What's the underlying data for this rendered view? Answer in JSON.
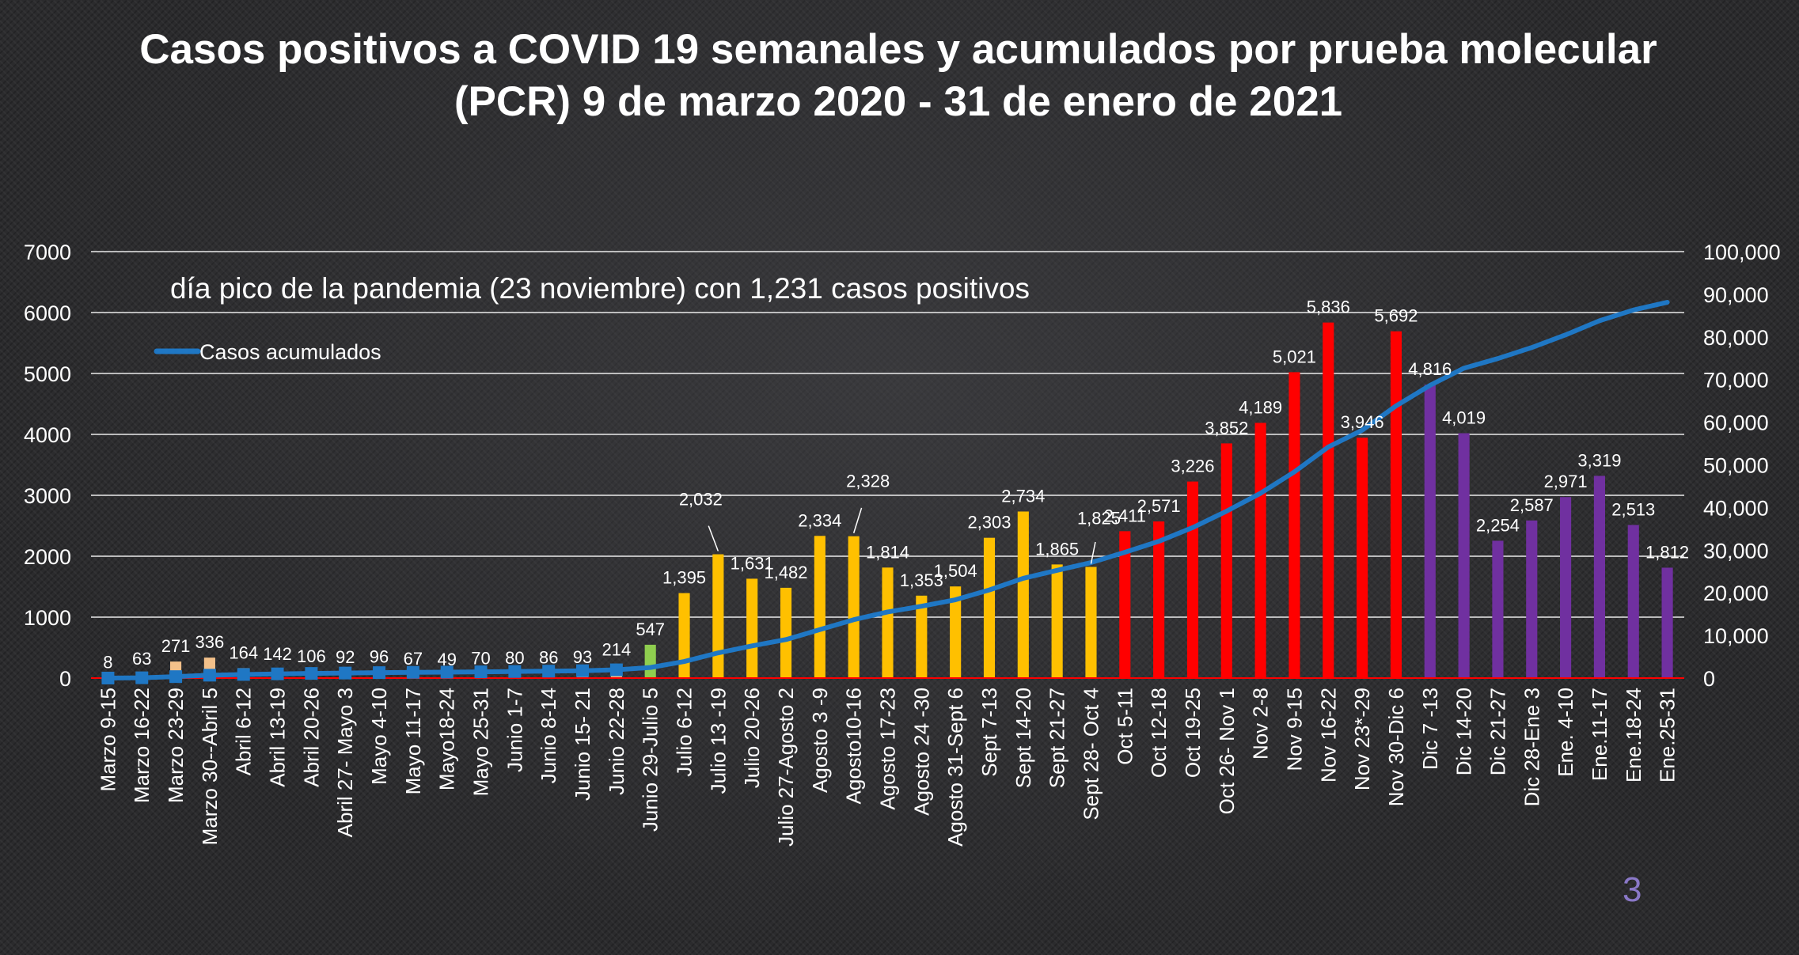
{
  "chart_data": {
    "type": "bar",
    "title": "Casos positivos a COVID 19 semanales y acumulados por prueba molecular (PCR) 9 de marzo 2020 - 31 de enero de 2021",
    "annotation": "día pico de la pandemia (23 noviembre) con  1,231  casos positivos",
    "categories": [
      "Marzo 9-15",
      "Marzo 16-22",
      "Marzo 23-29",
      "Marzo 30--Abril 5",
      "Abril 6-12",
      "Abril 13-19",
      "Abril 20-26",
      "Abril 27- Mayo 3",
      "Mayo 4-10",
      "Mayo 11-17",
      "Mayo18-24",
      "Mayo 25-31",
      "Junio  1-7",
      "Junio 8-14",
      "Junio  15- 21",
      "Junio 22-28",
      "Junio  29-Julio 5",
      "Julio 6-12",
      "Julio 13 -19",
      "Julio 20-26",
      "Julio 27-Agosto 2",
      "Agosto 3 -9",
      "Agosto10-16",
      "Agosto 17-23",
      "Agosto 24 -30",
      "Agosto 31-Sept 6",
      "Sept 7-13",
      "Sept 14-20",
      "Sept 21-27",
      "Sept 28- Oct 4",
      "Oct 5-11",
      "Oct 12-18",
      "Oct 19-25",
      "Oct 26- Nov 1",
      "Nov 2-8",
      "Nov 9-15",
      "Nov 16-22",
      "Nov 23*-29",
      "Nov 30-Dic 6",
      "Dic 7 -13",
      "Dic 14-20",
      "Dic 21-27",
      "Dic 28-Ene 3",
      "Ene. 4-10",
      "Ene.11-17",
      "Ene.18-24",
      "Ene.25-31"
    ],
    "series": [
      {
        "kind": "bar",
        "axis": "left",
        "values": [
          8,
          63,
          271,
          336,
          164,
          142,
          106,
          92,
          96,
          67,
          49,
          70,
          80,
          86,
          93,
          214,
          547,
          1395,
          2032,
          1631,
          1482,
          2334,
          2328,
          1814,
          1353,
          1504,
          2303,
          2734,
          1865,
          1825,
          2411,
          2571,
          3226,
          3852,
          4189,
          5021,
          5836,
          3946,
          5692,
          4816,
          4019,
          2254,
          2587,
          2971,
          3319,
          2513,
          1812
        ],
        "labels": [
          "8",
          "63",
          "271",
          "336",
          "164",
          "142",
          "106",
          "92",
          "96",
          "67",
          "49",
          "70",
          "80",
          "86",
          "93",
          "214",
          "547",
          "1,395",
          "2,032",
          "1,631",
          "1,482",
          "2,334",
          "2,328",
          "1,814",
          "1,353",
          "1,504",
          "2,303",
          "2,734",
          "1,865",
          "1,825",
          "2,411",
          "2,571",
          "3,226",
          "3,852",
          "4,189",
          "5,021",
          "5,836",
          "3,946",
          "5,692",
          "4,816",
          "4,019",
          "2,254",
          "2,587",
          "2,971",
          "3,319",
          "2,513",
          "1,812"
        ],
        "colors": [
          "#f2c08a",
          "#f2c08a",
          "#f2c08a",
          "#f2c08a",
          "#f2c08a",
          "#f2c08a",
          "#f2c08a",
          "#f2c08a",
          "#f2c08a",
          "#f2c08a",
          "#f2c08a",
          "#f2c08a",
          "#f2c08a",
          "#f2c08a",
          "#f2c08a",
          "#f2c08a",
          "#8fce4f",
          "#ffc000",
          "#ffc000",
          "#ffc000",
          "#ffc000",
          "#ffc000",
          "#ffc000",
          "#ffc000",
          "#ffc000",
          "#ffc000",
          "#ffc000",
          "#ffc000",
          "#ffc000",
          "#ffc000",
          "#ff0000",
          "#ff0000",
          "#ff0000",
          "#ff0000",
          "#ff0000",
          "#ff0000",
          "#ff0000",
          "#ff0000",
          "#ff0000",
          "#7030a0",
          "#7030a0",
          "#7030a0",
          "#7030a0",
          "#7030a0",
          "#7030a0",
          "#7030a0",
          "#7030a0"
        ]
      },
      {
        "kind": "line",
        "axis": "right",
        "name": "Casos acumulados",
        "color": "#1f77c4",
        "values": [
          8,
          71,
          342,
          678,
          842,
          984,
          1090,
          1182,
          1278,
          1345,
          1394,
          1464,
          1544,
          1630,
          1723,
          1937,
          2484,
          3879,
          5911,
          7542,
          9024,
          11358,
          13686,
          15500,
          16853,
          18357,
          20660,
          23394,
          25259,
          27084,
          29495,
          32066,
          35292,
          39144,
          43333,
          48354,
          54190,
          58136,
          63828,
          68644,
          72663,
          74917,
          77504,
          80475,
          83794,
          86307,
          88119
        ]
      }
    ],
    "y_left": {
      "min": 0,
      "max": 7000,
      "ticks": [
        "0",
        "1000",
        "2000",
        "3000",
        "4000",
        "5000",
        "6000",
        "7000"
      ]
    },
    "y_right": {
      "min": 0,
      "max": 100000,
      "ticks": [
        "0",
        "10,000",
        "20,000",
        "30,000",
        "40,000",
        "50,000",
        "60,000",
        "70,000",
        "80,000",
        "90,000",
        "100,000"
      ]
    },
    "grid": true,
    "legend_position": "top-left"
  },
  "page_number": "3"
}
